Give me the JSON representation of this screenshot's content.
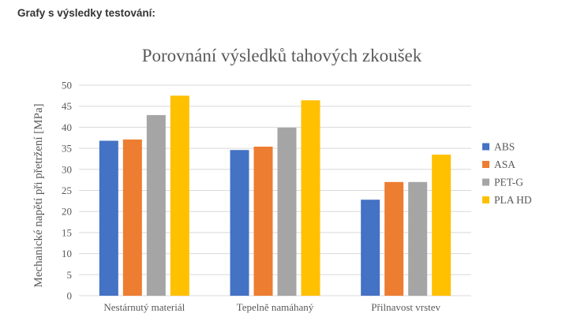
{
  "page": {
    "section_heading": "Grafy s výsledky testování:"
  },
  "chart_data": {
    "type": "bar",
    "title": "Porovnání výsledků tahových zkoušek",
    "xlabel": "",
    "ylabel": "Mechanické napětí při přetržení [MPa]",
    "ylim": [
      0,
      50
    ],
    "yticks": [
      0,
      5,
      10,
      15,
      20,
      25,
      30,
      35,
      40,
      45,
      50
    ],
    "grid": true,
    "legend_position": "right",
    "categories": [
      "Nestárnutý materiál",
      "Tepelně namáhaný",
      "Přilnavost vrstev"
    ],
    "series": [
      {
        "name": "ABS",
        "color": "#4472c4",
        "values": [
          36.8,
          34.6,
          22.8
        ]
      },
      {
        "name": "ASA",
        "color": "#ed7d31",
        "values": [
          37.1,
          35.4,
          27.0
        ]
      },
      {
        "name": "PET-G",
        "color": "#a5a5a5",
        "values": [
          42.9,
          39.9,
          27.0
        ]
      },
      {
        "name": "PLA HD",
        "color": "#ffc000",
        "values": [
          47.5,
          46.4,
          33.5
        ]
      }
    ]
  }
}
